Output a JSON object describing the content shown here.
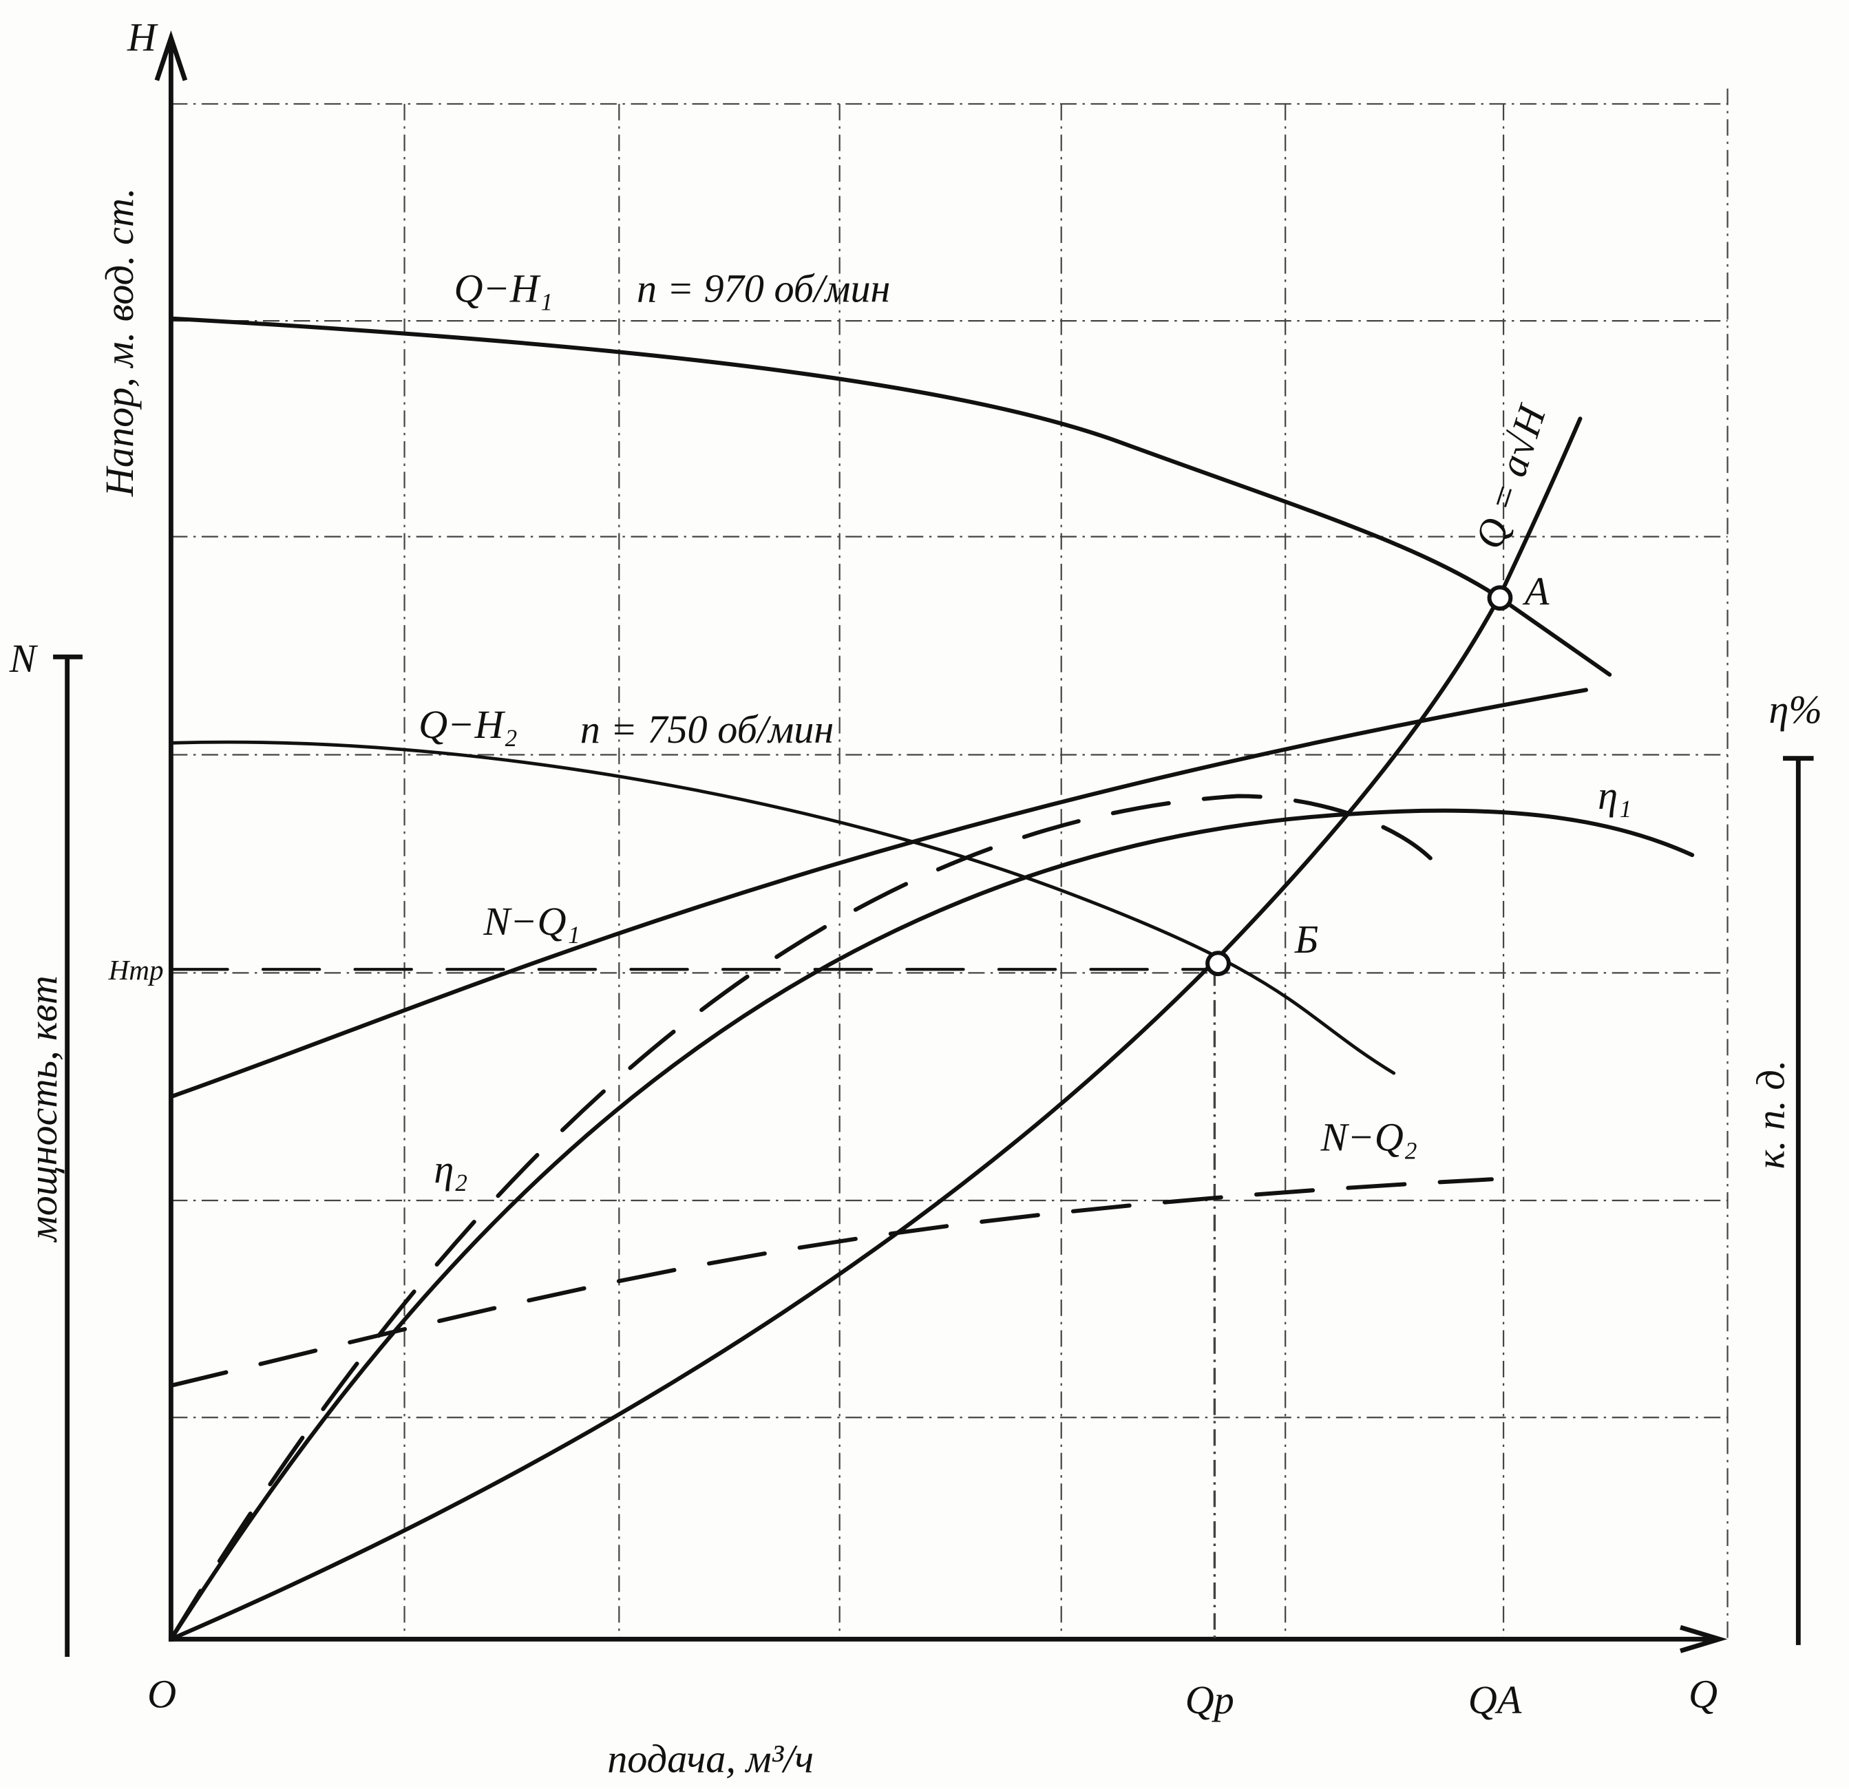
{
  "axes": {
    "h_symbol": "H",
    "h_label": "Напор, м. вод. ст.",
    "n_symbol": "N",
    "n_label": "мощность, квт",
    "eff_symbol": "η%",
    "eff_label": "к. п. д.",
    "origin": "О",
    "q_symbol": "Q",
    "q_label": "подача, м³/ч"
  },
  "marks": {
    "h_tr": "Hтр",
    "q_p": "Qр",
    "q_a": "QA"
  },
  "curves": {
    "qh1": "Q−H₁",
    "qh1_speed": "n = 970 об/мин",
    "qh2": "Q−H₂",
    "qh2_speed": "n = 750 об/мин",
    "nq1": "N−Q₁",
    "nq2": "N−Q₂",
    "eta1": "η₁",
    "eta2": "η₂",
    "system": "Q = a√H"
  },
  "points": {
    "a": "А",
    "b": "Б"
  }
}
